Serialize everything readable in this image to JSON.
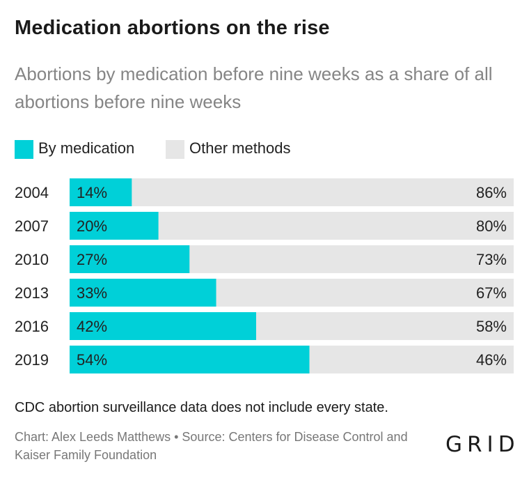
{
  "colors": {
    "medication": "#00d0d8",
    "other": "#e6e6e6",
    "text": "#222222",
    "muted": "#858585"
  },
  "chart_data": {
    "type": "bar",
    "orientation": "horizontal",
    "stacked": true,
    "title": "Medication abortions on the rise",
    "subtitle": "Abortions by medication before nine weeks as a share of all abortions before nine weeks",
    "categories": [
      "2004",
      "2007",
      "2010",
      "2013",
      "2016",
      "2019"
    ],
    "series": [
      {
        "name": "By medication",
        "values": [
          14,
          20,
          27,
          33,
          42,
          54
        ],
        "labels": [
          "14%",
          "20%",
          "27%",
          "33%",
          "42%",
          "54%"
        ]
      },
      {
        "name": "Other methods",
        "values": [
          86,
          80,
          73,
          67,
          58,
          46
        ],
        "labels": [
          "86%",
          "80%",
          "73%",
          "67%",
          "58%",
          "46%"
        ]
      }
    ],
    "xlim": [
      0,
      100
    ],
    "grid": false,
    "legend": "top-left"
  },
  "footnote": "CDC abortion surveillance data does not include every state.",
  "credit": "Chart: Alex Leeds Matthews • Source: Centers for Disease Control and Kaiser Family Foundation",
  "logo": "GRID"
}
